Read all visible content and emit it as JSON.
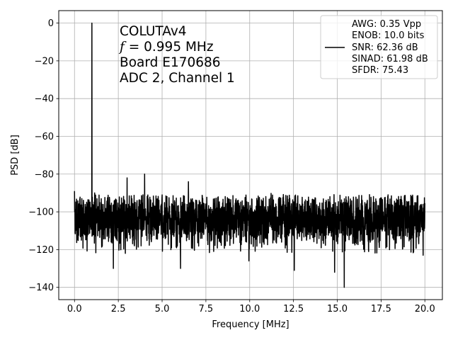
{
  "chart_data": {
    "type": "line",
    "xlabel": "Frequency [MHz]",
    "ylabel": "PSD [dB]",
    "xlim": [
      -0.9,
      21.0
    ],
    "ylim": [
      -146.5,
      6.6
    ],
    "xticks": [
      0.0,
      2.5,
      5.0,
      7.5,
      10.0,
      12.5,
      15.0,
      17.5,
      20.0
    ],
    "xtick_labels": [
      "0.0",
      "2.5",
      "5.0",
      "7.5",
      "10.0",
      "12.5",
      "15.0",
      "17.5",
      "20.0"
    ],
    "yticks": [
      0,
      -20,
      -40,
      -60,
      -80,
      -100,
      -120,
      -140
    ],
    "ytick_labels": [
      "0",
      "−20",
      "−40",
      "−60",
      "−80",
      "−100",
      "−120",
      "−140"
    ],
    "grid": true,
    "line_color": "#000000",
    "fundamental": {
      "frequency": 0.995,
      "psd": 0
    },
    "noise_floor": {
      "mean": -104,
      "band_low": -114,
      "band_high": -94
    },
    "spurs": [
      {
        "x": 0.0,
        "y": -89
      },
      {
        "x": 0.42,
        "y": -93
      },
      {
        "x": 0.995,
        "y": -80
      },
      {
        "x": 1.15,
        "y": -90
      },
      {
        "x": 2.22,
        "y": -130
      },
      {
        "x": 2.9,
        "y": -122
      },
      {
        "x": 3.0,
        "y": -82
      },
      {
        "x": 4.0,
        "y": -80
      },
      {
        "x": 5.0,
        "y": -91
      },
      {
        "x": 6.05,
        "y": -130
      },
      {
        "x": 6.5,
        "y": -84
      },
      {
        "x": 8.0,
        "y": -93
      },
      {
        "x": 9.95,
        "y": -126
      },
      {
        "x": 12.55,
        "y": -131
      },
      {
        "x": 14.85,
        "y": -132
      },
      {
        "x": 15.4,
        "y": -140
      },
      {
        "x": 15.5,
        "y": -92
      },
      {
        "x": 19.9,
        "y": -123
      }
    ],
    "legend": {
      "position": "top-right",
      "lines": [
        "AWG: 0.35 Vpp",
        "ENOB: 10.0 bits",
        "SNR: 62.36 dB",
        "SINAD: 61.98 dB",
        "SFDR: 75.43"
      ]
    },
    "annotation": {
      "line1": "COLUTAv4",
      "line2_symbol": "f",
      "line2_rest": " = 0.995 MHz",
      "line3": "Board E170686",
      "line4": "ADC 2, Channel 1"
    }
  }
}
